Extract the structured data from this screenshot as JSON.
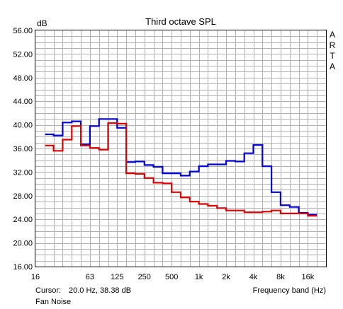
{
  "chart_data": {
    "type": "line",
    "title": "Third octave SPL",
    "ylabel": "dB",
    "xlabel": "Frequency band (Hz)",
    "y_ticks": [
      "56.00",
      "52.00",
      "48.00",
      "44.00",
      "40.00",
      "36.00",
      "32.00",
      "28.00",
      "24.00",
      "20.00",
      "16.00"
    ],
    "ylim": [
      16,
      56
    ],
    "x_tick_labels": [
      "16",
      "32",
      "63",
      "125",
      "250",
      "500",
      "1k",
      "2k",
      "4k",
      "8k",
      "16k"
    ],
    "bands": [
      "16",
      "20",
      "25",
      "31.5",
      "40",
      "50",
      "63",
      "80",
      "100",
      "125",
      "160",
      "200",
      "250",
      "315",
      "400",
      "500",
      "630",
      "800",
      "1k",
      "1.25k",
      "1.6k",
      "2k",
      "2.5k",
      "3.15k",
      "4k",
      "5k",
      "6.3k",
      "8k",
      "10k",
      "12.5k",
      "16k",
      "20k"
    ],
    "grid": true,
    "side_label": [
      "A",
      "R",
      "T",
      "A"
    ],
    "cursor": {
      "label": "Cursor:",
      "text": "20.0 Hz, 38.38 dB",
      "x_band": "20"
    },
    "caption": "Fan Noise",
    "series": [
      {
        "color": "#0000d8",
        "values": [
          null,
          38.4,
          38.2,
          40.4,
          40.6,
          36.7,
          39.8,
          41.0,
          41.0,
          39.5,
          33.7,
          33.8,
          33.2,
          32.9,
          31.8,
          31.8,
          31.4,
          32.1,
          33.0,
          33.3,
          33.3,
          33.9,
          33.8,
          35.2,
          36.6,
          33.0,
          28.6,
          26.4,
          26.1,
          25.1,
          24.8,
          null
        ]
      },
      {
        "color": "#e00000",
        "values": [
          null,
          36.5,
          35.6,
          37.5,
          39.8,
          36.5,
          36.1,
          35.8,
          40.3,
          40.2,
          31.8,
          31.7,
          31.0,
          30.2,
          30.1,
          28.6,
          27.7,
          27.0,
          26.6,
          26.3,
          25.9,
          25.5,
          25.5,
          25.2,
          25.2,
          25.3,
          25.5,
          25.0,
          25.0,
          25.0,
          24.6,
          null
        ]
      }
    ],
    "cursor_color": "#cccc00",
    "grid_color": "#b0b0b0"
  }
}
